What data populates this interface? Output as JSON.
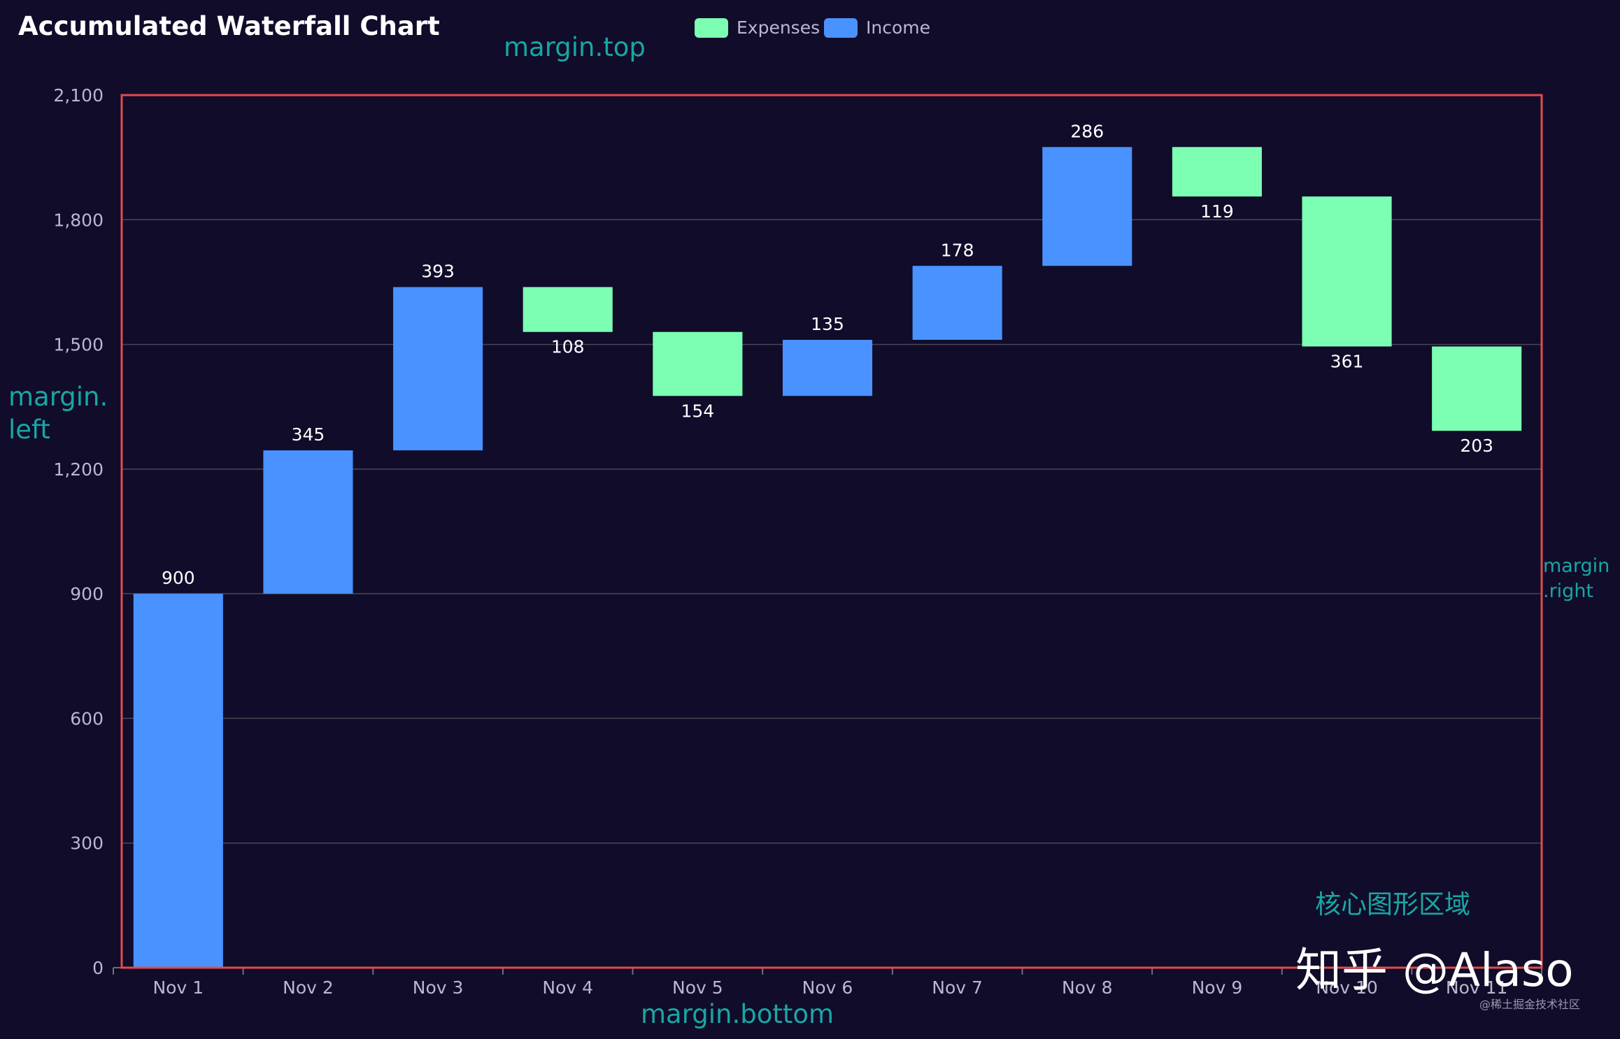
{
  "chart_data": {
    "type": "bar",
    "subtype": "waterfall",
    "title": "Accumulated Waterfall Chart",
    "xlabel": "",
    "ylabel": "",
    "ylim": [
      0,
      2100
    ],
    "yticks": [
      0,
      300,
      600,
      900,
      1200,
      1500,
      1800,
      2100
    ],
    "ytick_labels": [
      "0",
      "300",
      "600",
      "900",
      "1,200",
      "1,500",
      "1,800",
      "2,100"
    ],
    "grid": true,
    "legend_position": "top-center",
    "categories": [
      "Nov 1",
      "Nov 2",
      "Nov 3",
      "Nov 4",
      "Nov 5",
      "Nov 6",
      "Nov 7",
      "Nov 8",
      "Nov 9",
      "Nov 10",
      "Nov 11"
    ],
    "series": [
      {
        "name": "Income",
        "color": "#4992ff",
        "values": [
          900,
          345,
          393,
          null,
          null,
          135,
          178,
          286,
          null,
          null,
          null
        ]
      },
      {
        "name": "Expenses",
        "color": "#7cffb2",
        "values": [
          null,
          null,
          null,
          108,
          154,
          null,
          null,
          null,
          119,
          361,
          203
        ]
      }
    ],
    "legend": [
      {
        "name": "Expenses",
        "color": "#7cffb2"
      },
      {
        "name": "Income",
        "color": "#4992ff"
      }
    ]
  },
  "annotations": {
    "margin_top": "margin.top",
    "margin_left_line1": "margin.",
    "margin_left_line2": "left",
    "margin_right_line1": "margin",
    "margin_right_line2": ".right",
    "margin_bottom": "margin.bottom",
    "core_area": "核心图形区域"
  },
  "watermark": {
    "main": "知乎 @Alaso",
    "small": "@稀土掘金技术社区"
  },
  "colors": {
    "background": "#100c2a",
    "text": "#ffffff",
    "axis_label": "#b9b8ce",
    "grid": "#484753",
    "plot_border": "#e24b4b",
    "annotation": "#1aa6a3",
    "income": "#4992ff",
    "expenses": "#7cffb2"
  }
}
